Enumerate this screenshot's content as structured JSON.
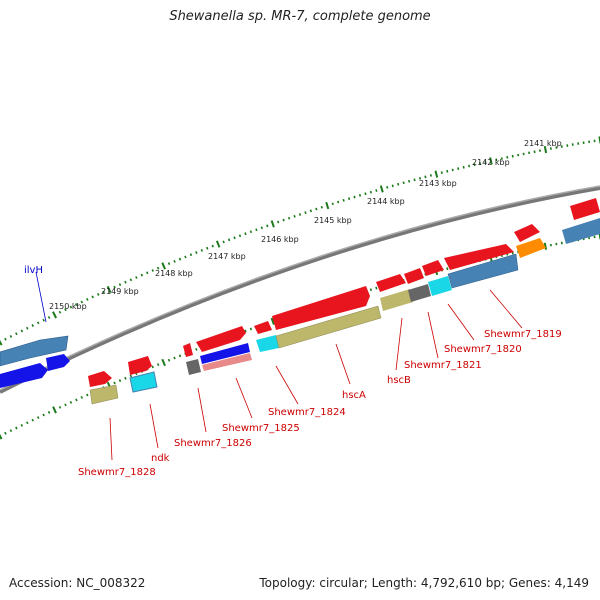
{
  "title": "Shewanella sp. MR-7, complete genome",
  "accession": "Accession: NC_008322",
  "summary": "Topology: circular; Length: 4,792,610 bp; Genes: 4,149",
  "scale_labels": [
    "2141 kbp",
    "2142 kbp",
    "2143 kbp",
    "2144 kbp",
    "2145 kbp",
    "2146 kbp",
    "2147 kbp",
    "2148 kbp",
    "2149 kbp",
    "2150 kbp"
  ],
  "gene_labels": [
    {
      "text": "ilvH",
      "color": "#0000cc"
    },
    {
      "text": "Shewmr7_1819",
      "color": "#cc0000"
    },
    {
      "text": "Shewmr7_1820",
      "color": "#cc0000"
    },
    {
      "text": "Shewmr7_1821",
      "color": "#cc0000"
    },
    {
      "text": "hscB",
      "color": "#cc0000"
    },
    {
      "text": "hscA",
      "color": "#cc0000"
    },
    {
      "text": "Shewmr7_1824",
      "color": "#cc0000"
    },
    {
      "text": "Shewmr7_1825",
      "color": "#cc0000"
    },
    {
      "text": "Shewmr7_1826",
      "color": "#cc0000"
    },
    {
      "text": "ndk",
      "color": "#cc0000"
    },
    {
      "text": "Shewmr7_1828",
      "color": "#cc0000"
    }
  ],
  "colors": {
    "backbone": "#888888",
    "tick": "#1a7a1a",
    "red": "#e8141e",
    "olive": "#bdb76b",
    "cyan": "#1ad7e8",
    "steelblue": "#4682b4",
    "orange": "#ff8c00",
    "gray": "#666666",
    "blue": "#1414e8",
    "pink": "#e88a8a"
  }
}
